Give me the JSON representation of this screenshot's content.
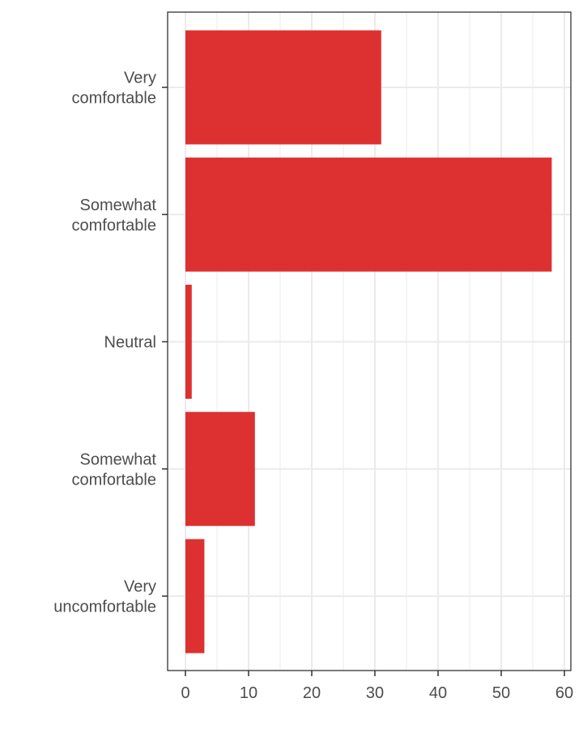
{
  "chart_data": {
    "type": "bar",
    "orientation": "horizontal",
    "categories": [
      "Very\ncomfortable",
      "Somewhat\ncomfortable",
      "Neutral",
      "Somewhat\ncomfortable",
      "Very\nuncomfortable"
    ],
    "values": [
      31,
      58,
      1,
      11,
      3
    ],
    "title": "",
    "xlabel": "",
    "ylabel": "",
    "xlim": [
      0,
      60
    ],
    "xticks": [
      0,
      10,
      20,
      30,
      40,
      50,
      60
    ],
    "grid": true,
    "legend": "none",
    "bar_color": "#dd3131",
    "grid_color": "#ebebeb",
    "border_color": "#333333",
    "text_color": "#4d4d4d"
  }
}
